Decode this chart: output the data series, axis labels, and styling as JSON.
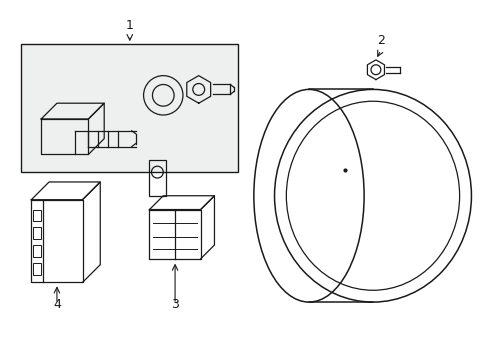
{
  "background_color": "#ffffff",
  "line_color": "#1a1a1a",
  "box_fill": "#eef0f0",
  "label_fontsize": 9,
  "figsize": [
    4.89,
    3.6
  ],
  "dpi": 100
}
